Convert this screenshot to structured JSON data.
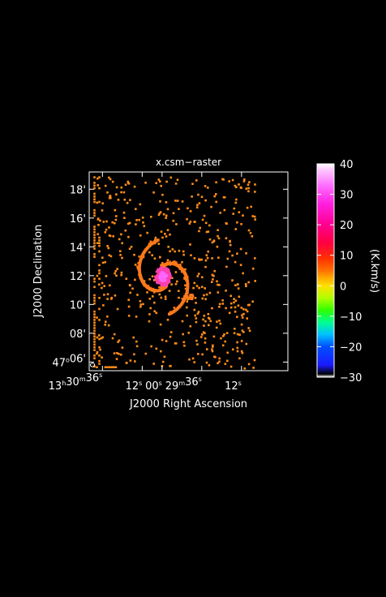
{
  "chart_data": {
    "type": "heatmap",
    "title": "x.csm−raster",
    "xlabel": "J2000 Right Ascension",
    "ylabel": "J2000 Declination",
    "x_axis": {
      "coordinate": "right_ascension",
      "unit": "seconds_of_time",
      "direction": "decreasing_to_right",
      "range_seconds_from_13h29m00s": [
        104,
        -16
      ],
      "ticks": [
        {
          "value": 96,
          "label_main": "13",
          "label_h": "h",
          "label_mid": "30",
          "label_m": "m",
          "label_sec": "36",
          "label_s": "s"
        },
        {
          "value": 72,
          "label_main": "12",
          "label_s": "s"
        },
        {
          "value": 60,
          "label_main": "00",
          "label_s": "s"
        },
        {
          "value": 36,
          "label_main": "29",
          "label_m": "m",
          "label_sec": "36",
          "label_s": "s"
        },
        {
          "value": 12,
          "label_main": "12",
          "label_s": "s"
        }
      ]
    },
    "y_axis": {
      "coordinate": "declination",
      "unit": "arcmin_above_47d00m",
      "range": [
        5.4,
        19.2
      ],
      "ticks": [
        {
          "value": 6,
          "label_deg": "47",
          "label_degsym": "o",
          "label_min": "06",
          "label_arc": "'"
        },
        {
          "value": 8,
          "label_min": "08",
          "label_arc": "'"
        },
        {
          "value": 10,
          "label_min": "10",
          "label_arc": "'"
        },
        {
          "value": 12,
          "label_min": "12",
          "label_arc": "'"
        },
        {
          "value": 14,
          "label_min": "14",
          "label_arc": "'"
        },
        {
          "value": 16,
          "label_min": "16",
          "label_arc": "'"
        },
        {
          "value": 18,
          "label_min": "18",
          "label_arc": "'"
        }
      ]
    },
    "colorbar": {
      "label": "(K.km/s)",
      "min": -30,
      "max": 40,
      "ticks": [
        {
          "value": 40,
          "label": "40"
        },
        {
          "value": 30,
          "label": "30"
        },
        {
          "value": 20,
          "label": "20"
        },
        {
          "value": 10,
          "label": "10"
        },
        {
          "value": 0,
          "label": "0"
        },
        {
          "value": -10,
          "label": "−10"
        },
        {
          "value": -20,
          "label": "−20"
        },
        {
          "value": -30,
          "label": "−30"
        }
      ],
      "stops": [
        {
          "value": -30,
          "color": "#ffffff"
        },
        {
          "value": -29,
          "color": "#000000"
        },
        {
          "value": -26,
          "color": "#1a1aff"
        },
        {
          "value": -20,
          "color": "#0050ff"
        },
        {
          "value": -16,
          "color": "#00c0ff"
        },
        {
          "value": -12,
          "color": "#00ff90"
        },
        {
          "value": -8,
          "color": "#30ff00"
        },
        {
          "value": -4,
          "color": "#b0ff00"
        },
        {
          "value": 0,
          "color": "#ffe000"
        },
        {
          "value": 3,
          "color": "#ffa000"
        },
        {
          "value": 5,
          "color": "#ff7000"
        },
        {
          "value": 9,
          "color": "#ff3000"
        },
        {
          "value": 14,
          "color": "#ff0040"
        },
        {
          "value": 20,
          "color": "#ff0090"
        },
        {
          "value": 27,
          "color": "#ff20e0"
        },
        {
          "value": 33,
          "color": "#ff70ff"
        },
        {
          "value": 38,
          "color": "#ffc8ff"
        },
        {
          "value": 40,
          "color": "#ffffff"
        }
      ]
    },
    "beam": {
      "ra_offset_s": 102,
      "dec_arcmin": 5.8
    },
    "colors": {
      "background": "#000000",
      "foreground": "#ffffff",
      "noise": "#ff8c1a",
      "arm": "#ff7a1a",
      "core": "#ff40b0",
      "nucleus": "#ff66ff"
    }
  }
}
